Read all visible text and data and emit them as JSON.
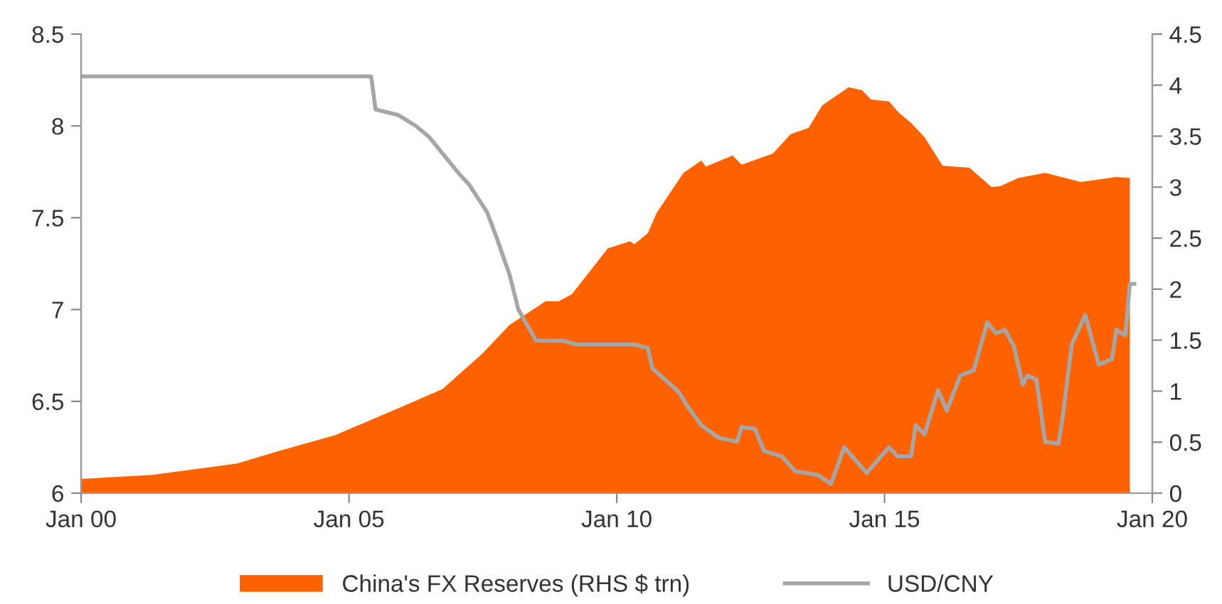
{
  "chart_data": {
    "type": "line",
    "xlim": [
      "2000-01",
      "2020-01"
    ],
    "xticks": [
      {
        "value": "2000-01",
        "label": "Jan 00"
      },
      {
        "value": "2005-01",
        "label": "Jan 05"
      },
      {
        "value": "2010-01",
        "label": "Jan 10"
      },
      {
        "value": "2015-01",
        "label": "Jan 15"
      },
      {
        "value": "2020-01",
        "label": "Jan 20"
      }
    ],
    "ylim": [
      6,
      8.5
    ],
    "yticks": [
      6,
      6.5,
      7,
      7.5,
      8,
      8.5
    ],
    "y2lim": [
      0,
      4.5
    ],
    "y2ticks": [
      0,
      0.5,
      1,
      1.5,
      2,
      2.5,
      3,
      3.5,
      4,
      4.5
    ],
    "grid": false,
    "legend": "bottom",
    "marker": "none",
    "line_style": "solid",
    "series": [
      {
        "name": "China's FX Reserves (RHS $ trn)",
        "type": "area",
        "axis": "y2",
        "color": "#ff6200",
        "x": [
          "2000-01",
          "2001-05",
          "2002-12",
          "2003-09",
          "2004-10",
          "2006-01",
          "2006-10",
          "2007-07",
          "2008-01",
          "2008-09",
          "2008-12",
          "2009-03",
          "2009-08",
          "2009-11",
          "2010-04",
          "2010-05",
          "2010-08",
          "2010-10",
          "2011-04",
          "2011-08",
          "2011-09",
          "2012-03",
          "2012-05",
          "2012-12",
          "2013-04",
          "2013-08",
          "2013-11",
          "2014-05",
          "2014-08",
          "2014-10",
          "2015-02",
          "2015-04",
          "2015-07",
          "2015-10",
          "2016-02",
          "2016-08",
          "2017-01",
          "2017-03",
          "2017-07",
          "2018-01",
          "2018-09",
          "2019-05",
          "2019-08"
        ],
        "values": [
          0.14,
          0.18,
          0.29,
          0.41,
          0.57,
          0.85,
          1.02,
          1.37,
          1.65,
          1.88,
          1.88,
          1.95,
          2.23,
          2.4,
          2.47,
          2.44,
          2.55,
          2.75,
          3.14,
          3.26,
          3.2,
          3.31,
          3.22,
          3.33,
          3.52,
          3.58,
          3.8,
          3.98,
          3.95,
          3.86,
          3.84,
          3.74,
          3.63,
          3.49,
          3.21,
          3.19,
          3.0,
          3.01,
          3.09,
          3.14,
          3.05,
          3.1,
          3.09
        ]
      },
      {
        "name": "USD/CNY",
        "axis": "y",
        "color": "#a6a6a6",
        "x": [
          "2000-01",
          "2005-06",
          "2005-07",
          "2005-12",
          "2006-04",
          "2006-07",
          "2007-02",
          "2007-04",
          "2007-08",
          "2007-10",
          "2008-01",
          "2008-03",
          "2008-07",
          "2009-01",
          "2009-04",
          "2010-05",
          "2010-08",
          "2010-09",
          "2011-03",
          "2011-05",
          "2011-08",
          "2011-12",
          "2012-04",
          "2012-05",
          "2012-08",
          "2012-10",
          "2013-02",
          "2013-05",
          "2013-10",
          "2014-01",
          "2014-04",
          "2014-09",
          "2015-02",
          "2015-04",
          "2015-07",
          "2015-08",
          "2015-10",
          "2016-01",
          "2016-03",
          "2016-06",
          "2016-09",
          "2016-12",
          "2017-02",
          "2017-04",
          "2017-06",
          "2017-08",
          "2017-09",
          "2017-11",
          "2018-01",
          "2018-04",
          "2018-05",
          "2018-07",
          "2018-10",
          "2019-01",
          "2019-04",
          "2019-05",
          "2019-07",
          "2019-08",
          "2019-09"
        ],
        "values": [
          8.27,
          8.27,
          8.09,
          8.06,
          8.0,
          7.94,
          7.73,
          7.68,
          7.53,
          7.4,
          7.19,
          7.0,
          6.83,
          6.83,
          6.81,
          6.81,
          6.79,
          6.68,
          6.55,
          6.47,
          6.37,
          6.3,
          6.28,
          6.36,
          6.35,
          6.23,
          6.2,
          6.12,
          6.1,
          6.05,
          6.25,
          6.11,
          6.25,
          6.2,
          6.2,
          6.37,
          6.32,
          6.56,
          6.45,
          6.64,
          6.67,
          6.93,
          6.87,
          6.89,
          6.8,
          6.59,
          6.64,
          6.62,
          6.28,
          6.27,
          6.42,
          6.81,
          6.97,
          6.7,
          6.73,
          6.89,
          6.86,
          7.14,
          7.14
        ]
      }
    ]
  }
}
